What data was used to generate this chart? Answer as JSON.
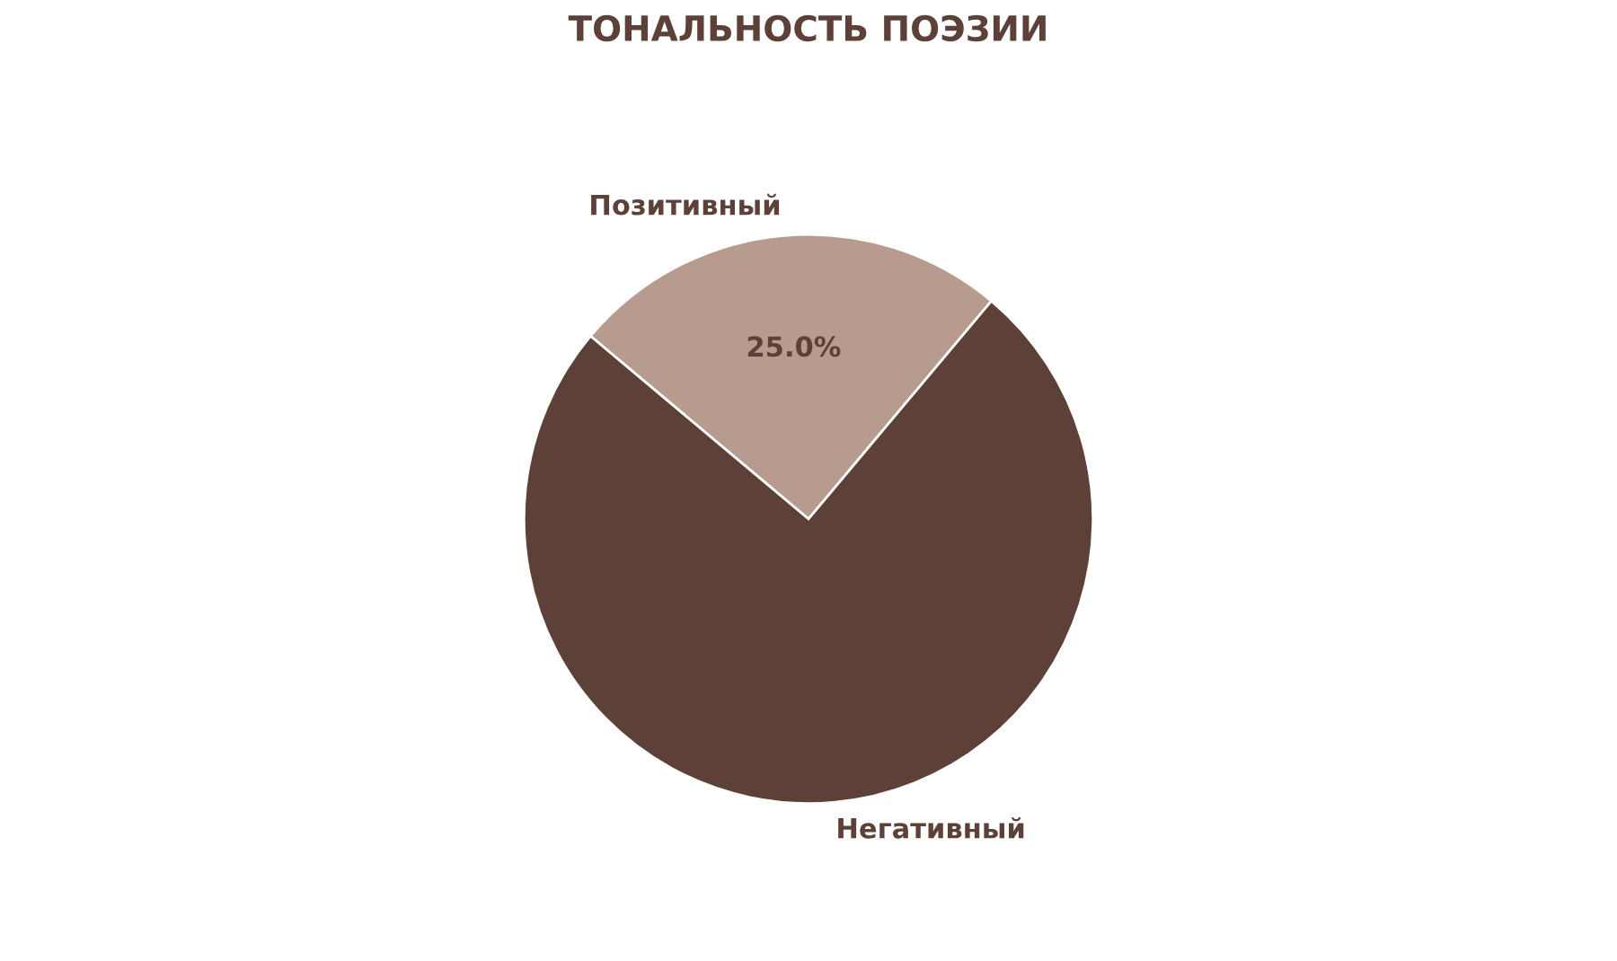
{
  "chart_data": {
    "type": "pie",
    "title": "ТОНАЛЬНОСТЬ ПОЭЗИИ",
    "categories": [
      "Позитивный",
      "Негативный"
    ],
    "values": [
      25,
      75
    ],
    "colors": [
      "#b89b8f",
      "#5d4037"
    ],
    "value_labels": [
      "25.0%",
      null
    ]
  }
}
